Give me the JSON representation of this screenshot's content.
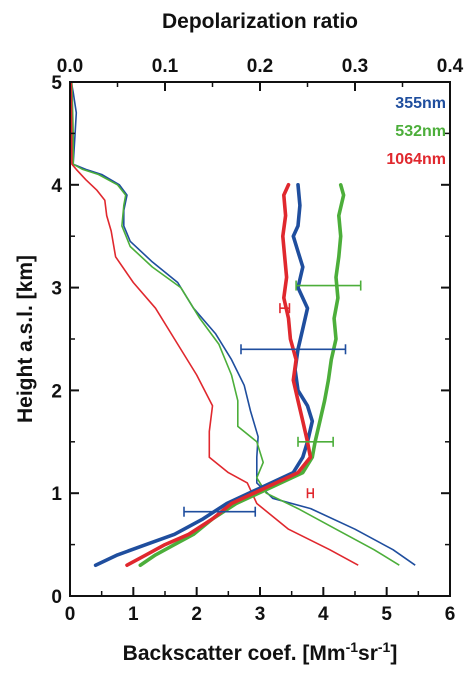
{
  "chart_data": {
    "type": "line",
    "title": "",
    "x_bottom": {
      "label_main": "Backscatter coef. [Mm",
      "label_sup1": "-1",
      "label_mid": "sr",
      "label_sup2": "-1",
      "label_end": "]",
      "range": [
        0,
        6
      ],
      "ticks": [
        "0",
        "1",
        "2",
        "3",
        "4",
        "5",
        "6"
      ]
    },
    "x_top": {
      "label": "Depolarization ratio",
      "range": [
        0,
        0.4
      ],
      "ticks": [
        "0.0",
        "0.1",
        "0.2",
        "0.3",
        "0.4"
      ]
    },
    "y": {
      "label": "Height a.s.l. [km]",
      "range": [
        0,
        5
      ],
      "ticks": [
        "0",
        "1",
        "2",
        "3",
        "4",
        "5"
      ]
    },
    "legend": {
      "position": "top-right",
      "entries": [
        "355nm",
        "532nm",
        "1064nm"
      ]
    },
    "colors": {
      "355nm": "#1f4e9e",
      "532nm": "#4cae3a",
      "1064nm": "#e0282e"
    },
    "backscatter": [
      {
        "name": "355nm",
        "color": "#1f4e9e",
        "points": [
          [
            5.45,
            0.3
          ],
          [
            5.1,
            0.45
          ],
          [
            4.5,
            0.65
          ],
          [
            3.8,
            0.85
          ],
          [
            3.2,
            0.95
          ],
          [
            2.95,
            1.1
          ],
          [
            2.95,
            1.35
          ],
          [
            2.97,
            1.55
          ],
          [
            2.85,
            1.8
          ],
          [
            2.75,
            2.05
          ],
          [
            2.55,
            2.3
          ],
          [
            2.3,
            2.55
          ],
          [
            1.95,
            2.8
          ],
          [
            1.7,
            3.05
          ],
          [
            1.3,
            3.25
          ],
          [
            0.95,
            3.45
          ],
          [
            0.85,
            3.6
          ],
          [
            0.85,
            3.75
          ],
          [
            0.9,
            3.9
          ],
          [
            0.78,
            4.0
          ],
          [
            0.5,
            4.1
          ],
          [
            0.25,
            4.15
          ],
          [
            0.05,
            4.2
          ],
          [
            0.08,
            4.5
          ],
          [
            0.1,
            4.7
          ],
          [
            0.05,
            4.9
          ],
          [
            0.02,
            5.0
          ]
        ]
      },
      {
        "name": "532nm",
        "color": "#4cae3a",
        "points": [
          [
            5.2,
            0.3
          ],
          [
            4.8,
            0.45
          ],
          [
            4.2,
            0.65
          ],
          [
            3.6,
            0.85
          ],
          [
            3.1,
            1.0
          ],
          [
            2.95,
            1.15
          ],
          [
            3.05,
            1.3
          ],
          [
            2.95,
            1.5
          ],
          [
            2.65,
            1.65
          ],
          [
            2.65,
            1.9
          ],
          [
            2.55,
            2.15
          ],
          [
            2.35,
            2.45
          ],
          [
            2.05,
            2.7
          ],
          [
            1.75,
            3.0
          ],
          [
            1.3,
            3.2
          ],
          [
            0.95,
            3.4
          ],
          [
            0.82,
            3.6
          ],
          [
            0.85,
            3.8
          ],
          [
            0.88,
            3.9
          ],
          [
            0.75,
            4.0
          ],
          [
            0.45,
            4.1
          ],
          [
            0.2,
            4.15
          ],
          [
            0.05,
            4.2
          ],
          [
            0.05,
            4.5
          ],
          [
            0.03,
            5.0
          ]
        ]
      },
      {
        "name": "1064nm",
        "color": "#e0282e",
        "points": [
          [
            4.55,
            0.3
          ],
          [
            4.1,
            0.45
          ],
          [
            3.45,
            0.65
          ],
          [
            2.95,
            0.9
          ],
          [
            2.8,
            1.1
          ],
          [
            2.5,
            1.2
          ],
          [
            2.2,
            1.35
          ],
          [
            2.2,
            1.6
          ],
          [
            2.25,
            1.85
          ],
          [
            2.0,
            2.15
          ],
          [
            1.65,
            2.5
          ],
          [
            1.35,
            2.8
          ],
          [
            1.0,
            3.05
          ],
          [
            0.72,
            3.3
          ],
          [
            0.65,
            3.55
          ],
          [
            0.58,
            3.7
          ],
          [
            0.55,
            3.85
          ],
          [
            0.42,
            3.95
          ],
          [
            0.25,
            4.05
          ],
          [
            0.1,
            4.15
          ],
          [
            0.03,
            4.2
          ],
          [
            0.02,
            5.0
          ]
        ]
      }
    ],
    "depolarization": [
      {
        "name": "355nm",
        "color": "#1f4e9e",
        "points": [
          [
            0.027,
            0.3
          ],
          [
            0.05,
            0.4
          ],
          [
            0.08,
            0.5
          ],
          [
            0.11,
            0.6
          ],
          [
            0.14,
            0.75
          ],
          [
            0.165,
            0.9
          ],
          [
            0.2,
            1.05
          ],
          [
            0.235,
            1.2
          ],
          [
            0.245,
            1.35
          ],
          [
            0.25,
            1.5
          ],
          [
            0.255,
            1.7
          ],
          [
            0.25,
            1.85
          ],
          [
            0.24,
            2.0
          ],
          [
            0.237,
            2.2
          ],
          [
            0.24,
            2.4
          ],
          [
            0.245,
            2.6
          ],
          [
            0.25,
            2.8
          ],
          [
            0.24,
            3.0
          ],
          [
            0.245,
            3.2
          ],
          [
            0.24,
            3.35
          ],
          [
            0.235,
            3.5
          ],
          [
            0.24,
            3.6
          ],
          [
            0.242,
            3.8
          ],
          [
            0.24,
            4.0
          ]
        ]
      },
      {
        "name": "532nm",
        "color": "#4cae3a",
        "points": [
          [
            0.074,
            0.3
          ],
          [
            0.09,
            0.4
          ],
          [
            0.11,
            0.5
          ],
          [
            0.13,
            0.6
          ],
          [
            0.15,
            0.75
          ],
          [
            0.175,
            0.9
          ],
          [
            0.21,
            1.05
          ],
          [
            0.245,
            1.2
          ],
          [
            0.255,
            1.35
          ],
          [
            0.258,
            1.5
          ],
          [
            0.263,
            1.7
          ],
          [
            0.268,
            1.9
          ],
          [
            0.272,
            2.1
          ],
          [
            0.275,
            2.3
          ],
          [
            0.28,
            2.5
          ],
          [
            0.278,
            2.7
          ],
          [
            0.282,
            2.9
          ],
          [
            0.28,
            3.1
          ],
          [
            0.283,
            3.3
          ],
          [
            0.285,
            3.5
          ],
          [
            0.283,
            3.7
          ],
          [
            0.288,
            3.9
          ],
          [
            0.285,
            4.0
          ]
        ]
      },
      {
        "name": "1064nm",
        "color": "#e0282e",
        "points": [
          [
            0.06,
            0.3
          ],
          [
            0.08,
            0.4
          ],
          [
            0.1,
            0.5
          ],
          [
            0.125,
            0.6
          ],
          [
            0.15,
            0.75
          ],
          [
            0.17,
            0.9
          ],
          [
            0.205,
            1.05
          ],
          [
            0.24,
            1.2
          ],
          [
            0.253,
            1.35
          ],
          [
            0.25,
            1.5
          ],
          [
            0.245,
            1.7
          ],
          [
            0.24,
            1.9
          ],
          [
            0.235,
            2.1
          ],
          [
            0.238,
            2.3
          ],
          [
            0.232,
            2.5
          ],
          [
            0.23,
            2.7
          ],
          [
            0.225,
            2.9
          ],
          [
            0.228,
            3.1
          ],
          [
            0.226,
            3.3
          ],
          [
            0.224,
            3.5
          ],
          [
            0.227,
            3.7
          ],
          [
            0.225,
            3.9
          ],
          [
            0.23,
            4.0
          ]
        ]
      }
    ],
    "error_bars": [
      {
        "series": "355nm",
        "axis": "depolarization",
        "y": 2.4,
        "xmin": 0.18,
        "xmax": 0.29,
        "color": "#1f4e9e"
      },
      {
        "series": "355nm",
        "axis": "depolarization",
        "y": 0.82,
        "xmin": 0.12,
        "xmax": 0.195,
        "color": "#1f4e9e"
      },
      {
        "series": "532nm",
        "axis": "depolarization",
        "y": 3.02,
        "xmin": 0.238,
        "xmax": 0.306,
        "color": "#4cae3a"
      },
      {
        "series": "532nm",
        "axis": "depolarization",
        "y": 1.5,
        "xmin": 0.24,
        "xmax": 0.277,
        "color": "#4cae3a"
      },
      {
        "series": "1064nm",
        "axis": "depolarization",
        "y": 2.8,
        "xmin": 0.221,
        "xmax": 0.231,
        "color": "#e0282e"
      },
      {
        "series": "1064nm",
        "axis": "depolarization",
        "y": 1.0,
        "xmin": 0.25,
        "xmax": 0.256,
        "color": "#e0282e"
      }
    ]
  }
}
